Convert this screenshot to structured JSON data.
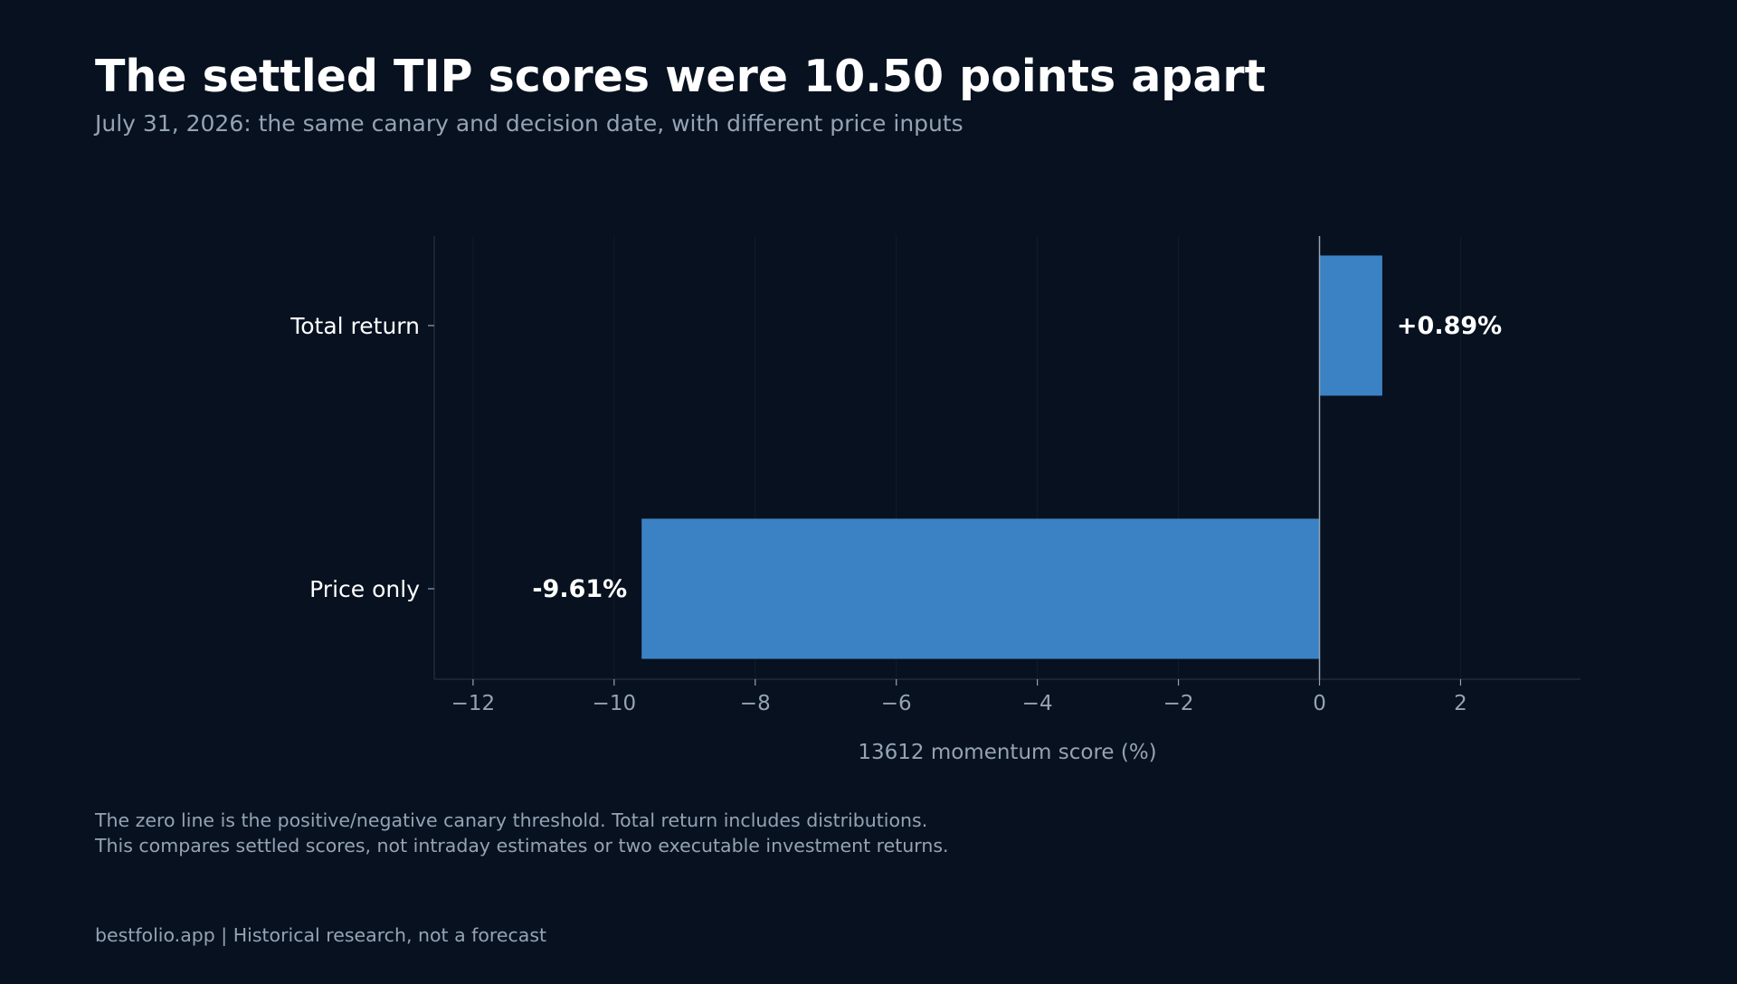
{
  "title": "The settled TIP scores were 10.50 points apart",
  "subtitle": "July 31, 2026: the same canary and decision date, with different price inputs",
  "footnotes": [
    "The zero line is the positive/negative canary threshold. Total return includes distributions.",
    "This compares settled scores, not intraday estimates or two executable investment returns."
  ],
  "footer": "bestfolio.app  |  Historical research, not a forecast",
  "colors": {
    "background": "#07111f",
    "bar": "#3b82c4",
    "muted_text": "#95a3b4",
    "zero_line": "#95a3b4",
    "grid": "#0f1b2a"
  },
  "chart_data": {
    "type": "bar",
    "orientation": "horizontal",
    "categories": [
      "Total return",
      "Price only"
    ],
    "values": [
      0.89,
      -9.61
    ],
    "data_labels": [
      "+0.89%",
      "-9.61%"
    ],
    "xlabel": "13612 momentum score (%)",
    "ylabel": "",
    "xlim": [
      -12.55,
      3.7
    ],
    "xticks": [
      -12,
      -10,
      -8,
      -6,
      -4,
      -2,
      0,
      2
    ],
    "xtick_labels": [
      "−12",
      "−10",
      "−8",
      "−6",
      "−4",
      "−2",
      "0",
      "2"
    ],
    "grid": "vertical",
    "zero_line": true
  }
}
